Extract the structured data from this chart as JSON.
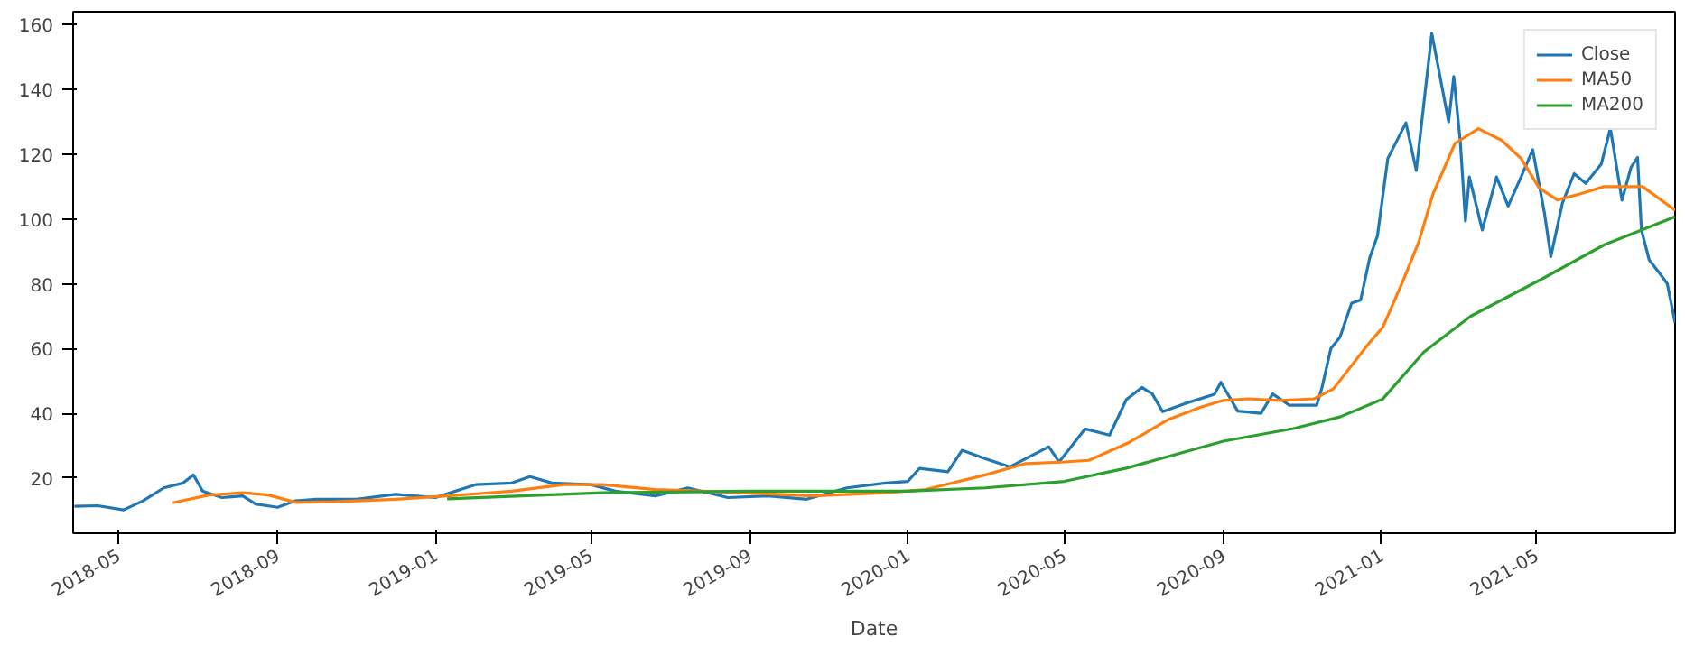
{
  "chart_data": {
    "type": "line",
    "xlabel": "Date",
    "xlim": [
      "2018-03-27",
      "2021-08-16"
    ],
    "ylim": [
      3,
      164
    ],
    "xticks": [
      "2018-05",
      "2018-09",
      "2019-01",
      "2019-05",
      "2019-09",
      "2020-01",
      "2020-05",
      "2020-09",
      "2021-01",
      "2021-05"
    ],
    "yticks": [
      20,
      40,
      60,
      80,
      100,
      120,
      140,
      160
    ],
    "grid": false,
    "legend": "top right",
    "marker": "none",
    "line_style": "solid",
    "series": [
      {
        "name": "Close",
        "color": "#1f77b4",
        "x": [
          "2018-03-28",
          "2018-04-15",
          "2018-05-05",
          "2018-05-20",
          "2018-06-05",
          "2018-06-20",
          "2018-06-28",
          "2018-07-05",
          "2018-07-20",
          "2018-08-05",
          "2018-08-15",
          "2018-09-01",
          "2018-09-15",
          "2018-10-01",
          "2018-11-01",
          "2018-12-01",
          "2019-01-01",
          "2019-02-01",
          "2019-03-01",
          "2019-03-15",
          "2019-04-01",
          "2019-05-01",
          "2019-05-20",
          "2019-06-20",
          "2019-07-15",
          "2019-08-15",
          "2019-09-15",
          "2019-10-15",
          "2019-11-15",
          "2019-12-15",
          "2020-01-01",
          "2020-01-10",
          "2020-02-01",
          "2020-02-12",
          "2020-03-01",
          "2020-03-20",
          "2020-04-19",
          "2020-04-27",
          "2020-05-17",
          "2020-06-05",
          "2020-06-18",
          "2020-06-30",
          "2020-07-08",
          "2020-07-16",
          "2020-08-02",
          "2020-08-25",
          "2020-08-30",
          "2020-09-12",
          "2020-09-30",
          "2020-10-09",
          "2020-10-22",
          "2020-11-12",
          "2020-11-16",
          "2020-11-23",
          "2020-11-30",
          "2020-12-09",
          "2020-12-16",
          "2020-12-23",
          "2020-12-29",
          "2021-01-06",
          "2021-01-20",
          "2021-01-28",
          "2021-02-09",
          "2021-02-22",
          "2021-02-26",
          "2021-03-03",
          "2021-03-07",
          "2021-03-10",
          "2021-03-20",
          "2021-03-31",
          "2021-04-09",
          "2021-04-19",
          "2021-04-28",
          "2021-05-07",
          "2021-05-12",
          "2021-05-21",
          "2021-05-30",
          "2021-06-08",
          "2021-06-20",
          "2021-06-27",
          "2021-07-06",
          "2021-07-13",
          "2021-07-18",
          "2021-07-21",
          "2021-07-27",
          "2021-08-03",
          "2021-08-10",
          "2021-08-16"
        ],
        "values": [
          11.3,
          11.5,
          10.2,
          13,
          17,
          18.5,
          21,
          16,
          14,
          14.5,
          12,
          11,
          13,
          13.5,
          13.5,
          15,
          14,
          18,
          18.5,
          20.5,
          18.5,
          18,
          16,
          14.5,
          17,
          14,
          14.5,
          13.5,
          17,
          18.5,
          19,
          23,
          22,
          28.6,
          26,
          23.5,
          29.7,
          25,
          35.2,
          33.3,
          44.3,
          48,
          46,
          40.5,
          43,
          45.9,
          49.6,
          40.7,
          40,
          46,
          42.5,
          42.5,
          47.8,
          60,
          63.5,
          74,
          75,
          88,
          94.8,
          118.7,
          129.7,
          115,
          157.3,
          130,
          144,
          124,
          99.4,
          113,
          96.6,
          113,
          104,
          113,
          121.4,
          102,
          88.4,
          105,
          114,
          111,
          117,
          128,
          105.8,
          116,
          119,
          96.6,
          87.4,
          83.8,
          80,
          68
        ]
      },
      {
        "name": "MA50",
        "color": "#ff7f0e",
        "x": [
          "2018-06-12",
          "2018-07-10",
          "2018-08-05",
          "2018-08-25",
          "2018-09-15",
          "2018-10-15",
          "2018-12-01",
          "2019-01-10",
          "2019-03-01",
          "2019-04-10",
          "2019-05-10",
          "2019-06-20",
          "2019-08-15",
          "2019-10-20",
          "2019-12-15",
          "2020-01-15",
          "2020-03-01",
          "2020-04-01",
          "2020-05-01",
          "2020-05-20",
          "2020-06-20",
          "2020-07-20",
          "2020-08-15",
          "2020-09-01",
          "2020-09-20",
          "2020-10-15",
          "2020-11-10",
          "2020-11-25",
          "2020-12-23",
          "2021-01-02",
          "2021-01-17",
          "2021-01-30",
          "2021-02-10",
          "2021-02-27",
          "2021-03-17",
          "2021-04-04",
          "2021-04-19",
          "2021-05-03",
          "2021-05-17",
          "2021-06-04",
          "2021-06-22",
          "2021-07-01",
          "2021-07-22",
          "2021-08-16"
        ],
        "values": [
          12.4,
          14.8,
          15.5,
          14.8,
          12.5,
          12.7,
          13.5,
          14.5,
          16,
          18,
          18,
          16.5,
          15.7,
          14.5,
          15.5,
          16.5,
          21,
          24.5,
          25,
          25.5,
          31,
          38,
          42,
          44,
          44.5,
          44,
          44.5,
          47.6,
          61.9,
          66.5,
          80.2,
          93,
          107.8,
          123.4,
          127.9,
          124.3,
          118.7,
          109.6,
          105.9,
          107.8,
          110,
          110,
          110,
          102.7
        ]
      },
      {
        "name": "MA200",
        "color": "#2ca02c",
        "x": [
          "2019-01-10",
          "2019-05-10",
          "2019-09-01",
          "2020-01-01",
          "2020-03-01",
          "2020-05-01",
          "2020-06-18",
          "2020-09-01",
          "2020-10-25",
          "2020-11-30",
          "2021-01-02",
          "2021-02-03",
          "2021-03-11",
          "2021-05-07",
          "2021-06-22",
          "2021-08-16"
        ],
        "values": [
          13.6,
          15.5,
          16,
          16,
          17,
          19,
          23.1,
          31.4,
          35.3,
          38.9,
          44.4,
          59,
          70,
          81.9,
          92,
          100.7
        ]
      }
    ]
  }
}
